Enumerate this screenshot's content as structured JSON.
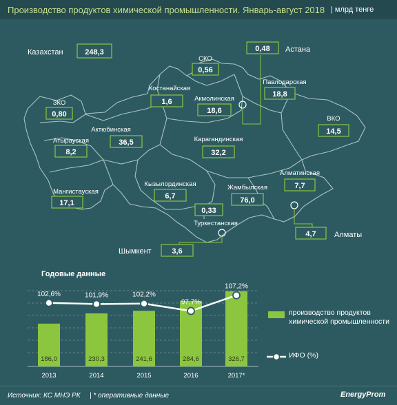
{
  "header": {
    "title": "Производство продуктов химической промышленности. Январь-август 2018",
    "unit": "| млрд тенге"
  },
  "map": {
    "total_label": "Казахстан",
    "total_value": "248,3",
    "regions": [
      {
        "id": "zko",
        "name": "ЗКО",
        "value": "0,80"
      },
      {
        "id": "atyrau",
        "name": "Атырауская",
        "value": "8,2"
      },
      {
        "id": "mangystau",
        "name": "Мангистауская",
        "value": "17,1"
      },
      {
        "id": "aktobe",
        "name": "Актюбинская",
        "value": "36,5"
      },
      {
        "id": "kostanay",
        "name": "Костанайская",
        "value": "1,6"
      },
      {
        "id": "sko",
        "name": "СКО",
        "value": "0,56"
      },
      {
        "id": "akmola",
        "name": "Акмолинская",
        "value": "18,6"
      },
      {
        "id": "pavlodar",
        "name": "Павлодарская",
        "value": "18,8"
      },
      {
        "id": "vko",
        "name": "ВКО",
        "value": "14,5"
      },
      {
        "id": "karaganda",
        "name": "Карагандинская",
        "value": "32,2"
      },
      {
        "id": "kyzylorda",
        "name": "Кызылординская",
        "value": "6,7"
      },
      {
        "id": "zhambyl",
        "name": "Жамбылская",
        "value": "76,0"
      },
      {
        "id": "almaty_reg",
        "name": "Алматинская",
        "value": "7,7"
      },
      {
        "id": "turkestan",
        "name": "Туркестанская",
        "value": "0,33"
      }
    ],
    "cities": [
      {
        "id": "astana",
        "name": "Астана",
        "value": "0,48"
      },
      {
        "id": "almaty",
        "name": "Алматы",
        "value": "4,7"
      },
      {
        "id": "shymkent",
        "name": "Шымкент",
        "value": "3,6"
      }
    ]
  },
  "annual": {
    "section_title": "Годовые данные",
    "legend_bar": "производство продуктов химической промышленности",
    "legend_line": "ИФО (%)"
  },
  "chart_data": {
    "type": "bar",
    "categories": [
      "2013",
      "2014",
      "2015",
      "2016",
      "2017*"
    ],
    "series": [
      {
        "name": "производство продуктов химической промышленности",
        "type": "bar",
        "values": [
          186.0,
          230.3,
          241.6,
          284.6,
          326.7
        ],
        "labels": [
          "186,0",
          "230,3",
          "241,6",
          "284,6",
          "326,7"
        ]
      },
      {
        "name": "ИФО (%)",
        "type": "line",
        "values": [
          102.6,
          101.9,
          102.2,
          97.7,
          107.2
        ],
        "labels": [
          "102,6%",
          "101,9%",
          "102,2%",
          "97,7%",
          "107,2%"
        ]
      }
    ],
    "grid": true,
    "legend": "right"
  },
  "footer": {
    "source": "Источник: КС МНЭ РК",
    "note": "| * оперативные данные",
    "logo": "EnergyProm"
  },
  "colors": {
    "background": "#2d5a60",
    "title": "#c7df8a",
    "bar": "#8cc63f",
    "box_border": "#8cc63f",
    "region_border": "#a9c4c4"
  }
}
